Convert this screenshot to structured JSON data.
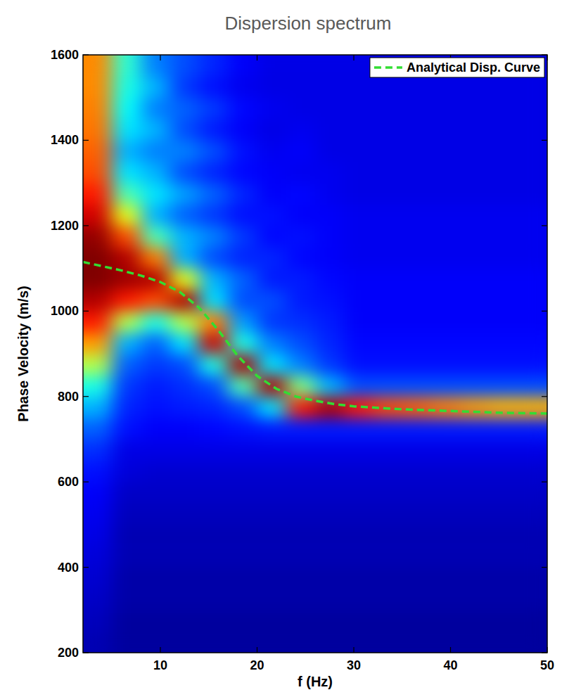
{
  "chart_data": {
    "type": "heatmap",
    "title": "Dispersion spectrum",
    "x_label": "f (Hz)",
    "y_label": "Phase Velocity (m/s)",
    "xlim": [
      2,
      50
    ],
    "ylim": [
      200,
      1600
    ],
    "xticks": [
      10,
      20,
      30,
      40,
      50
    ],
    "yticks": [
      200,
      400,
      600,
      800,
      1000,
      1200,
      1400,
      1600
    ],
    "grid": false,
    "legend": "upper right",
    "x_bins": [
      2,
      5,
      8,
      11,
      14,
      17,
      20,
      23,
      26,
      29,
      32,
      35,
      38,
      41,
      44,
      47,
      50
    ],
    "y_bins": [
      200,
      250,
      300,
      350,
      400,
      450,
      500,
      550,
      600,
      650,
      700,
      750,
      800,
      850,
      900,
      950,
      1000,
      1050,
      1100,
      1150,
      1200,
      1250,
      1300,
      1350,
      1400,
      1450,
      1500,
      1550,
      1600
    ],
    "cells": [
      [
        0.05,
        0.03,
        0.03,
        0.03,
        0.03,
        0.03,
        0.03,
        0.03,
        0.03,
        0.03,
        0.03,
        0.03,
        0.03,
        0.03,
        0.03,
        0.03
      ],
      [
        0.06,
        0.03,
        0.03,
        0.03,
        0.03,
        0.03,
        0.03,
        0.03,
        0.03,
        0.03,
        0.03,
        0.03,
        0.03,
        0.03,
        0.03,
        0.03
      ],
      [
        0.07,
        0.04,
        0.04,
        0.04,
        0.04,
        0.04,
        0.04,
        0.04,
        0.04,
        0.04,
        0.04,
        0.04,
        0.04,
        0.04,
        0.04,
        0.04
      ],
      [
        0.08,
        0.04,
        0.04,
        0.04,
        0.04,
        0.04,
        0.04,
        0.04,
        0.04,
        0.04,
        0.04,
        0.04,
        0.04,
        0.04,
        0.04,
        0.04
      ],
      [
        0.09,
        0.05,
        0.05,
        0.05,
        0.05,
        0.05,
        0.05,
        0.05,
        0.05,
        0.05,
        0.05,
        0.05,
        0.05,
        0.05,
        0.05,
        0.05
      ],
      [
        0.1,
        0.05,
        0.05,
        0.05,
        0.05,
        0.05,
        0.05,
        0.05,
        0.05,
        0.05,
        0.05,
        0.05,
        0.05,
        0.05,
        0.05,
        0.05
      ],
      [
        0.11,
        0.06,
        0.06,
        0.06,
        0.06,
        0.06,
        0.06,
        0.06,
        0.06,
        0.06,
        0.06,
        0.06,
        0.06,
        0.06,
        0.06,
        0.06
      ],
      [
        0.12,
        0.07,
        0.07,
        0.07,
        0.07,
        0.07,
        0.07,
        0.07,
        0.07,
        0.07,
        0.07,
        0.07,
        0.07,
        0.07,
        0.07,
        0.07
      ],
      [
        0.14,
        0.09,
        0.08,
        0.08,
        0.08,
        0.08,
        0.08,
        0.08,
        0.08,
        0.08,
        0.08,
        0.08,
        0.08,
        0.08,
        0.08,
        0.08
      ],
      [
        0.17,
        0.1,
        0.1,
        0.1,
        0.1,
        0.1,
        0.1,
        0.1,
        0.1,
        0.1,
        0.1,
        0.1,
        0.1,
        0.1,
        0.1,
        0.1
      ],
      [
        0.22,
        0.14,
        0.12,
        0.12,
        0.13,
        0.14,
        0.15,
        0.15,
        0.15,
        0.15,
        0.15,
        0.15,
        0.15,
        0.15,
        0.15,
        0.15
      ],
      [
        0.3,
        0.16,
        0.14,
        0.15,
        0.16,
        0.2,
        0.35,
        0.85,
        0.95,
        0.85,
        0.8,
        0.78,
        0.75,
        0.72,
        0.7,
        0.7
      ],
      [
        0.4,
        0.18,
        0.15,
        0.17,
        0.2,
        0.45,
        0.95,
        0.5,
        0.3,
        0.2,
        0.2,
        0.2,
        0.2,
        0.2,
        0.2,
        0.2
      ],
      [
        0.55,
        0.22,
        0.18,
        0.2,
        0.4,
        0.95,
        0.35,
        0.25,
        0.18,
        0.14,
        0.14,
        0.14,
        0.14,
        0.14,
        0.14,
        0.14
      ],
      [
        0.72,
        0.3,
        0.22,
        0.35,
        0.92,
        0.4,
        0.25,
        0.2,
        0.16,
        0.13,
        0.13,
        0.13,
        0.13,
        0.13,
        0.13,
        0.13
      ],
      [
        0.85,
        0.55,
        0.4,
        0.55,
        0.75,
        0.28,
        0.18,
        0.17,
        0.15,
        0.12,
        0.12,
        0.12,
        0.12,
        0.12,
        0.12,
        0.12
      ],
      [
        0.95,
        0.85,
        0.8,
        0.95,
        0.35,
        0.2,
        0.2,
        0.15,
        0.14,
        0.12,
        0.12,
        0.12,
        0.12,
        0.12,
        0.12,
        0.12
      ],
      [
        1.0,
        0.97,
        0.95,
        0.6,
        0.3,
        0.22,
        0.15,
        0.15,
        0.13,
        0.12,
        0.12,
        0.12,
        0.12,
        0.12,
        0.12,
        0.12
      ],
      [
        1.0,
        0.95,
        0.75,
        0.3,
        0.2,
        0.16,
        0.16,
        0.13,
        0.12,
        0.11,
        0.11,
        0.11,
        0.11,
        0.11,
        0.11,
        0.11
      ],
      [
        0.98,
        0.8,
        0.45,
        0.3,
        0.25,
        0.18,
        0.13,
        0.14,
        0.12,
        0.11,
        0.11,
        0.11,
        0.11,
        0.11,
        0.11,
        0.11
      ],
      [
        0.92,
        0.6,
        0.3,
        0.22,
        0.18,
        0.14,
        0.14,
        0.12,
        0.12,
        0.11,
        0.11,
        0.11,
        0.11,
        0.11,
        0.11,
        0.11
      ],
      [
        0.85,
        0.45,
        0.35,
        0.28,
        0.22,
        0.16,
        0.12,
        0.13,
        0.11,
        0.1,
        0.1,
        0.1,
        0.1,
        0.1,
        0.1,
        0.1
      ],
      [
        0.8,
        0.35,
        0.3,
        0.2,
        0.16,
        0.13,
        0.12,
        0.11,
        0.11,
        0.1,
        0.1,
        0.1,
        0.1,
        0.1,
        0.1,
        0.1
      ],
      [
        0.78,
        0.3,
        0.25,
        0.25,
        0.2,
        0.14,
        0.11,
        0.12,
        0.1,
        0.1,
        0.1,
        0.1,
        0.1,
        0.1,
        0.1,
        0.1
      ],
      [
        0.76,
        0.35,
        0.3,
        0.2,
        0.15,
        0.12,
        0.1,
        0.11,
        0.1,
        0.1,
        0.1,
        0.1,
        0.1,
        0.1,
        0.1,
        0.1
      ],
      [
        0.75,
        0.38,
        0.25,
        0.22,
        0.18,
        0.13,
        0.11,
        0.1,
        0.1,
        0.1,
        0.1,
        0.1,
        0.1,
        0.1,
        0.1,
        0.1
      ],
      [
        0.74,
        0.4,
        0.3,
        0.18,
        0.14,
        0.11,
        0.1,
        0.1,
        0.1,
        0.1,
        0.1,
        0.1,
        0.1,
        0.1,
        0.1,
        0.1
      ],
      [
        0.74,
        0.42,
        0.25,
        0.2,
        0.16,
        0.12,
        0.1,
        0.1,
        0.1,
        0.1,
        0.1,
        0.1,
        0.1,
        0.1,
        0.1,
        0.1
      ]
    ],
    "series": [
      {
        "name": "Analytical Disp. Curve",
        "type": "line",
        "color": "#33dd33",
        "line_style": "dashed",
        "x": [
          2,
          4,
          6,
          8,
          10,
          12,
          14,
          16,
          18,
          20,
          22,
          24,
          26,
          28,
          30,
          35,
          40,
          45,
          50
        ],
        "values": [
          1115,
          1105,
          1095,
          1083,
          1068,
          1045,
          1008,
          955,
          895,
          848,
          818,
          800,
          790,
          782,
          777,
          770,
          766,
          762,
          760
        ]
      }
    ]
  }
}
